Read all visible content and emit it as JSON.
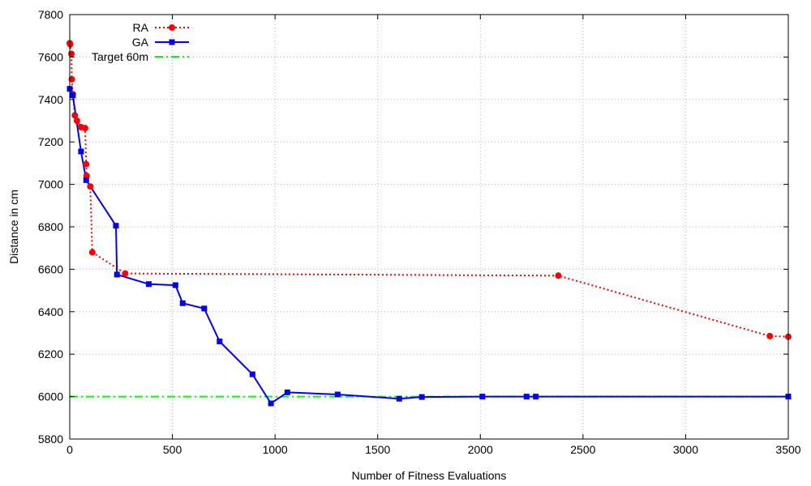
{
  "chart_data": {
    "type": "line",
    "xlabel": "Number of Fitness Evaluations",
    "ylabel": "Distance in cm",
    "xlim": [
      0,
      3500
    ],
    "ylim": [
      5800,
      7800
    ],
    "xticks": [
      0,
      500,
      1000,
      1500,
      2000,
      2500,
      3000,
      3500
    ],
    "yticks": [
      5800,
      6000,
      6200,
      6400,
      6600,
      6800,
      7000,
      7200,
      7400,
      7600,
      7800
    ],
    "grid": true,
    "legend_position": "top-left",
    "series": [
      {
        "name": "RA",
        "color": "#ff0000",
        "line_style": "dotted",
        "marker": "circle",
        "points": [
          [
            0,
            7665
          ],
          [
            2,
            7660
          ],
          [
            8,
            7615
          ],
          [
            10,
            7495
          ],
          [
            15,
            7425
          ],
          [
            25,
            7325
          ],
          [
            35,
            7300
          ],
          [
            55,
            7270
          ],
          [
            75,
            7265
          ],
          [
            80,
            7095
          ],
          [
            82,
            7040
          ],
          [
            100,
            6990
          ],
          [
            110,
            6680
          ],
          [
            270,
            6580
          ],
          [
            2380,
            6570
          ],
          [
            3410,
            6285
          ],
          [
            3500,
            6282
          ]
        ]
      },
      {
        "name": "GA",
        "color": "#0000ff",
        "line_style": "solid",
        "marker": "square",
        "points": [
          [
            0,
            7450
          ],
          [
            15,
            7420
          ],
          [
            55,
            7155
          ],
          [
            80,
            7020
          ],
          [
            225,
            6805
          ],
          [
            230,
            6575
          ],
          [
            385,
            6530
          ],
          [
            515,
            6525
          ],
          [
            550,
            6440
          ],
          [
            655,
            6415
          ],
          [
            730,
            6260
          ],
          [
            890,
            6105
          ],
          [
            980,
            5968
          ],
          [
            1060,
            6020
          ],
          [
            1305,
            6010
          ],
          [
            1605,
            5990
          ],
          [
            1715,
            5998
          ],
          [
            2010,
            6000
          ],
          [
            2225,
            6000
          ],
          [
            2270,
            6000
          ],
          [
            3500,
            6000
          ]
        ]
      },
      {
        "name": "Target 60m",
        "color": "#00ff00",
        "line_style": "dashdot",
        "marker": "none",
        "points": [
          [
            0,
            6000
          ],
          [
            3500,
            6000
          ]
        ]
      }
    ]
  }
}
